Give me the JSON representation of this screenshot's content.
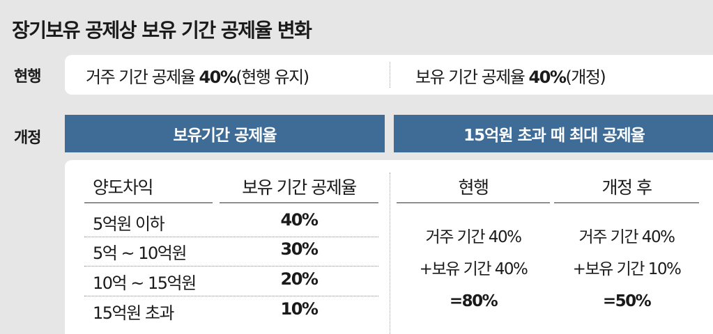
{
  "title": "장기보유 공제상 보유 기간 공제율 변화",
  "current": {
    "label": "현행",
    "residence_text": "거주 기간 공제율 ",
    "residence_rate": "40%",
    "residence_note": "(현행 유지)",
    "holding_text": "보유 기간 공제율 ",
    "holding_rate": "40%",
    "holding_note": "(개정)"
  },
  "revised": {
    "label": "개정",
    "left_header": "보유기간 공제율",
    "right_header": "15억원 초과 때 최대 공제율",
    "columns": [
      "양도차익",
      "보유 기간 공제율",
      "현행",
      "개정 후"
    ],
    "rows": [
      {
        "range": "5억원 이하",
        "rate": "40%"
      },
      {
        "range": "5억 ~  10억원",
        "rate": "30%"
      },
      {
        "range": "10억 ~ 15억원",
        "rate": "20%"
      },
      {
        "range": "15억원 초과",
        "rate": "10%"
      }
    ],
    "current_calc": {
      "line1": "거주 기간 40%",
      "line2": "+보유 기간 40%",
      "total": "=80%"
    },
    "after_calc": {
      "line1": "거주 기간 40%",
      "line2": "+보유 기간 10%",
      "total": "=50%"
    }
  }
}
